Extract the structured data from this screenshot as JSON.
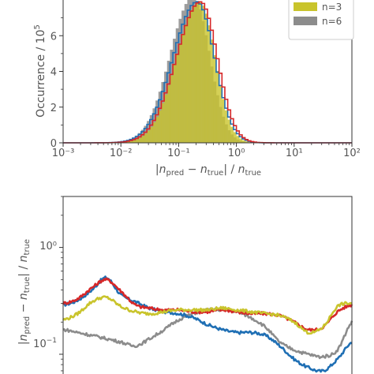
{
  "chart_data": [
    {
      "type": "bar",
      "subtype": "histogram",
      "xscale": "log",
      "xlim": [
        0.001,
        100
      ],
      "ylim": [
        0,
        8
      ],
      "x_tick_labels": [
        "10⁻³",
        "10⁻²",
        "10⁻¹",
        "10⁰",
        "10¹",
        "10²"
      ],
      "y_tick_labels": [
        "0",
        "2",
        "4",
        "6"
      ],
      "xlabel_parts": {
        "bar_open": "|",
        "n1": "n",
        "sub1": "pred",
        "minus": " − ",
        "n2": "n",
        "sub2": "true",
        "bar_close": "|",
        "slash": " / ",
        "n3": "n",
        "sub3": "true"
      },
      "ylabel_text": "Occurrence / 10",
      "ylabel_exp": "5",
      "legend_position": "top-right",
      "series": [
        {
          "name": "",
          "color": "#1f6fb4",
          "peak_x": 0.21,
          "peak": 7.9,
          "width_left": 0.42,
          "width_right": 0.3
        },
        {
          "name": "",
          "color": "#d62728",
          "peak_x": 0.24,
          "peak": 7.9,
          "width_left": 0.42,
          "width_right": 0.29
        },
        {
          "name": "n=3",
          "color": "#c9c42c",
          "peak_x": 0.23,
          "peak": 7.9,
          "width_left": 0.4,
          "width_right": 0.27
        },
        {
          "name": "n=6",
          "color": "#8c8c8c",
          "peak_x": 0.18,
          "peak": 8.2,
          "width_left": 0.4,
          "width_right": 0.28
        }
      ]
    },
    {
      "type": "line",
      "yscale": "log",
      "ylim": [
        0.058,
        3.0
      ],
      "xlim": [
        0,
        1
      ],
      "y_tick_labels": {
        "one": "10⁰",
        "tenth_base": "10",
        "tenth_exp": "−1"
      },
      "ylabel_parts": {
        "bar_open": "|",
        "n1": "n",
        "sub1": "pred",
        "minus": " − ",
        "n2": "n",
        "sub2": "true",
        "bar_close": "|",
        "slash": " / ",
        "n3": "n",
        "sub3": "true"
      },
      "x": [
        0.0,
        0.05,
        0.1,
        0.15,
        0.2,
        0.25,
        0.3,
        0.35,
        0.4,
        0.45,
        0.5,
        0.55,
        0.6,
        0.65,
        0.7,
        0.75,
        0.8,
        0.85,
        0.9,
        0.95,
        1.0
      ],
      "series": [
        {
          "color": "#1f6fb4",
          "values": [
            0.29,
            0.32,
            0.4,
            0.52,
            0.36,
            0.31,
            0.27,
            0.25,
            0.24,
            0.22,
            0.19,
            0.17,
            0.16,
            0.16,
            0.15,
            0.12,
            0.09,
            0.075,
            0.07,
            0.09,
            0.13
          ]
        },
        {
          "color": "#d62728",
          "values": [
            0.3,
            0.33,
            0.42,
            0.5,
            0.39,
            0.29,
            0.27,
            0.26,
            0.26,
            0.25,
            0.25,
            0.26,
            0.25,
            0.24,
            0.24,
            0.23,
            0.2,
            0.17,
            0.18,
            0.25,
            0.29
          ]
        },
        {
          "color": "#c9c42c",
          "values": [
            0.21,
            0.24,
            0.31,
            0.34,
            0.28,
            0.25,
            0.24,
            0.25,
            0.26,
            0.26,
            0.26,
            0.27,
            0.26,
            0.25,
            0.24,
            0.23,
            0.2,
            0.16,
            0.18,
            0.28,
            0.3
          ]
        },
        {
          "color": "#8c8c8c",
          "values": [
            0.17,
            0.16,
            0.15,
            0.14,
            0.13,
            0.12,
            0.14,
            0.17,
            0.21,
            0.24,
            0.26,
            0.26,
            0.25,
            0.22,
            0.18,
            0.13,
            0.11,
            0.1,
            0.095,
            0.11,
            0.2
          ]
        }
      ]
    }
  ]
}
